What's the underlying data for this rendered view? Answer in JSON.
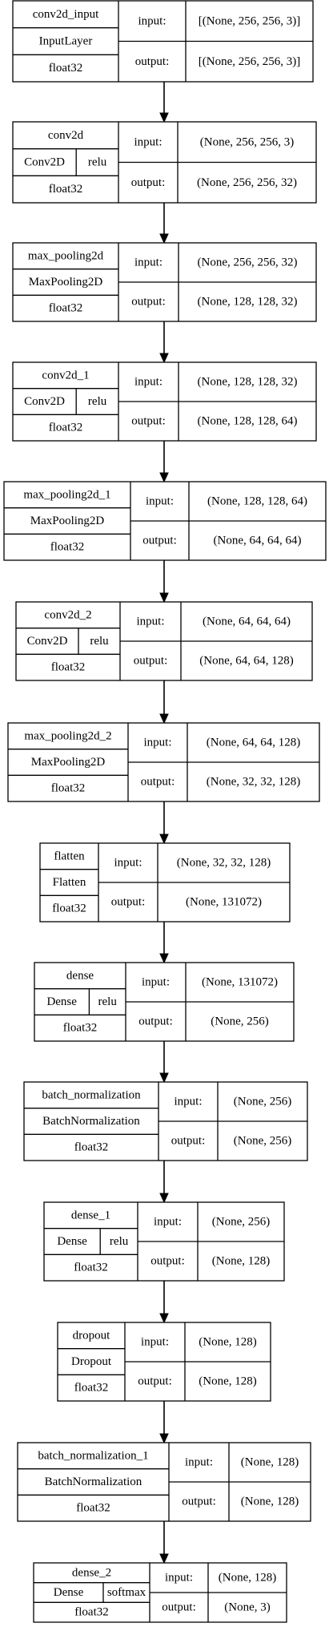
{
  "layers": [
    {
      "name": "conv2d_input",
      "type": "InputLayer",
      "activation": "",
      "dtype": "float32",
      "input_label": "input:",
      "output_label": "output:",
      "input": "[(None, 256, 256, 3)]",
      "output": "[(None, 256, 256, 3)]"
    },
    {
      "name": "conv2d",
      "type": "Conv2D",
      "activation": "relu",
      "dtype": "float32",
      "input_label": "input:",
      "output_label": "output:",
      "input": "(None, 256, 256, 3)",
      "output": "(None, 256, 256, 32)"
    },
    {
      "name": "max_pooling2d",
      "type": "MaxPooling2D",
      "activation": "",
      "dtype": "float32",
      "input_label": "input:",
      "output_label": "output:",
      "input": "(None, 256, 256, 32)",
      "output": "(None, 128, 128, 32)"
    },
    {
      "name": "conv2d_1",
      "type": "Conv2D",
      "activation": "relu",
      "dtype": "float32",
      "input_label": "input:",
      "output_label": "output:",
      "input": "(None, 128, 128, 32)",
      "output": "(None, 128, 128, 64)"
    },
    {
      "name": "max_pooling2d_1",
      "type": "MaxPooling2D",
      "activation": "",
      "dtype": "float32",
      "input_label": "input:",
      "output_label": "output:",
      "input": "(None, 128, 128, 64)",
      "output": "(None, 64, 64, 64)"
    },
    {
      "name": "conv2d_2",
      "type": "Conv2D",
      "activation": "relu",
      "dtype": "float32",
      "input_label": "input:",
      "output_label": "output:",
      "input": "(None, 64, 64, 64)",
      "output": "(None, 64, 64, 128)"
    },
    {
      "name": "max_pooling2d_2",
      "type": "MaxPooling2D",
      "activation": "",
      "dtype": "float32",
      "input_label": "input:",
      "output_label": "output:",
      "input": "(None, 64, 64, 128)",
      "output": "(None, 32, 32, 128)"
    },
    {
      "name": "flatten",
      "type": "Flatten",
      "activation": "",
      "dtype": "float32",
      "input_label": "input:",
      "output_label": "output:",
      "input": "(None, 32, 32, 128)",
      "output": "(None, 131072)"
    },
    {
      "name": "dense",
      "type": "Dense",
      "activation": "relu",
      "dtype": "float32",
      "input_label": "input:",
      "output_label": "output:",
      "input": "(None, 131072)",
      "output": "(None, 256)"
    },
    {
      "name": "batch_normalization",
      "type": "BatchNormalization",
      "activation": "",
      "dtype": "float32",
      "input_label": "input:",
      "output_label": "output:",
      "input": "(None, 256)",
      "output": "(None, 256)"
    },
    {
      "name": "dense_1",
      "type": "Dense",
      "activation": "relu",
      "dtype": "float32",
      "input_label": "input:",
      "output_label": "output:",
      "input": "(None, 256)",
      "output": "(None, 128)"
    },
    {
      "name": "dropout",
      "type": "Dropout",
      "activation": "",
      "dtype": "float32",
      "input_label": "input:",
      "output_label": "output:",
      "input": "(None, 128)",
      "output": "(None, 128)"
    },
    {
      "name": "batch_normalization_1",
      "type": "BatchNormalization",
      "activation": "",
      "dtype": "float32",
      "input_label": "input:",
      "output_label": "output:",
      "input": "(None, 128)",
      "output": "(None, 128)"
    },
    {
      "name": "dense_2",
      "type": "Dense",
      "activation": "softmax",
      "dtype": "float32",
      "input_label": "input:",
      "output_label": "output:",
      "input": "(None, 128)",
      "output": "(None, 3)"
    }
  ]
}
